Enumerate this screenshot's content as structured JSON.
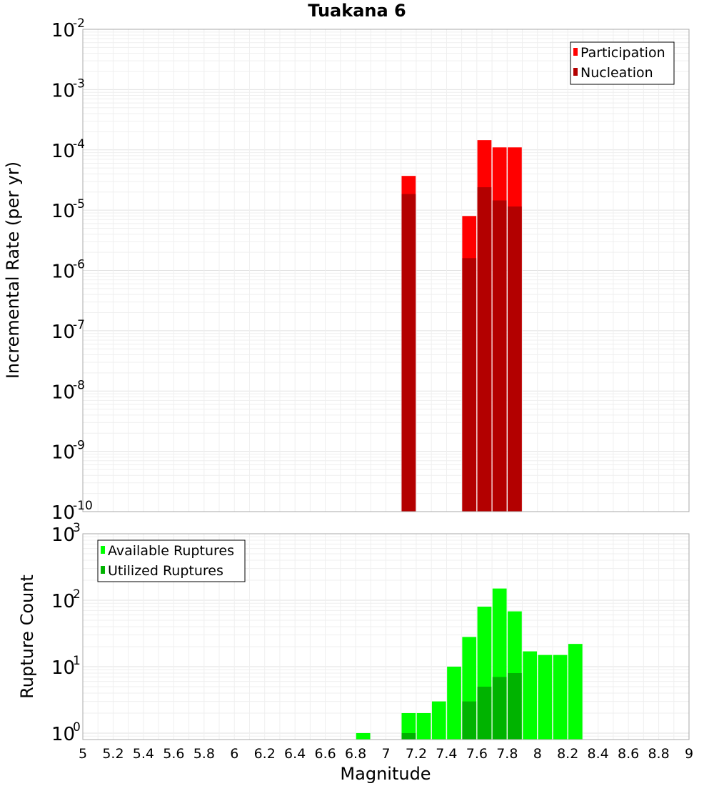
{
  "title": "Tuakana 6",
  "xlabel": "Magnitude",
  "x_ticks": [
    "5",
    "5.2",
    "5.4",
    "5.6",
    "5.8",
    "6",
    "6.2",
    "6.4",
    "6.6",
    "6.8",
    "7",
    "7.2",
    "7.4",
    "7.6",
    "7.8",
    "8",
    "8.2",
    "8.4",
    "8.6",
    "8.8",
    "9"
  ],
  "chart_data": [
    {
      "type": "bar",
      "name": "rate-panel",
      "ylabel": "Incremental Rate (per yr)",
      "xlim": [
        5,
        9
      ],
      "ylim": [
        1e-10,
        0.01
      ],
      "yscale": "log",
      "y_ticks": [
        {
          "base": "10",
          "exp": "-2",
          "value": 0.01
        },
        {
          "base": "10",
          "exp": "-3",
          "value": 0.001
        },
        {
          "base": "10",
          "exp": "-4",
          "value": 0.0001
        },
        {
          "base": "10",
          "exp": "-5",
          "value": 1e-05
        },
        {
          "base": "10",
          "exp": "-6",
          "value": 1e-06
        },
        {
          "base": "10",
          "exp": "-7",
          "value": 1e-07
        },
        {
          "base": "10",
          "exp": "-8",
          "value": 1e-08
        },
        {
          "base": "10",
          "exp": "-9",
          "value": 1e-09
        },
        {
          "base": "10",
          "exp": "-10",
          "value": 1e-10
        }
      ],
      "legend_position": "top-right",
      "grid": true,
      "series": [
        {
          "name": "Participation",
          "color": "#ff0000",
          "x": [
            7.15,
            7.55,
            7.65,
            7.75,
            7.85
          ],
          "values": [
            3.7e-05,
            8e-06,
            0.000145,
            0.00011,
            0.00011
          ]
        },
        {
          "name": "Nucleation",
          "color": "#b30000",
          "x": [
            7.15,
            7.55,
            7.65,
            7.75,
            7.85
          ],
          "values": [
            1.85e-05,
            1.6e-06,
            2.4e-05,
            1.45e-05,
            1.15e-05
          ]
        }
      ]
    },
    {
      "type": "bar",
      "name": "count-panel",
      "ylabel": "Rupture Count",
      "xlim": [
        5,
        9
      ],
      "ylim": [
        0.8,
        1000
      ],
      "yscale": "log",
      "y_ticks": [
        {
          "base": "10",
          "exp": "3",
          "value": 1000
        },
        {
          "base": "10",
          "exp": "2",
          "value": 100
        },
        {
          "base": "10",
          "exp": "1",
          "value": 10
        },
        {
          "base": "10",
          "exp": "0",
          "value": 1
        }
      ],
      "legend_position": "top-left",
      "grid": true,
      "series": [
        {
          "name": "Available Ruptures",
          "color": "#00ff00",
          "x": [
            6.85,
            7.15,
            7.25,
            7.35,
            7.45,
            7.55,
            7.65,
            7.75,
            7.85,
            7.95,
            8.05,
            8.15,
            8.25
          ],
          "values": [
            1,
            2,
            2,
            3,
            10,
            28,
            80,
            150,
            68,
            17,
            15,
            15,
            22
          ]
        },
        {
          "name": "Utilized Ruptures",
          "color": "#00b300",
          "x": [
            7.15,
            7.55,
            7.65,
            7.75,
            7.85
          ],
          "values": [
            1,
            3,
            5,
            7,
            8
          ]
        }
      ]
    }
  ]
}
